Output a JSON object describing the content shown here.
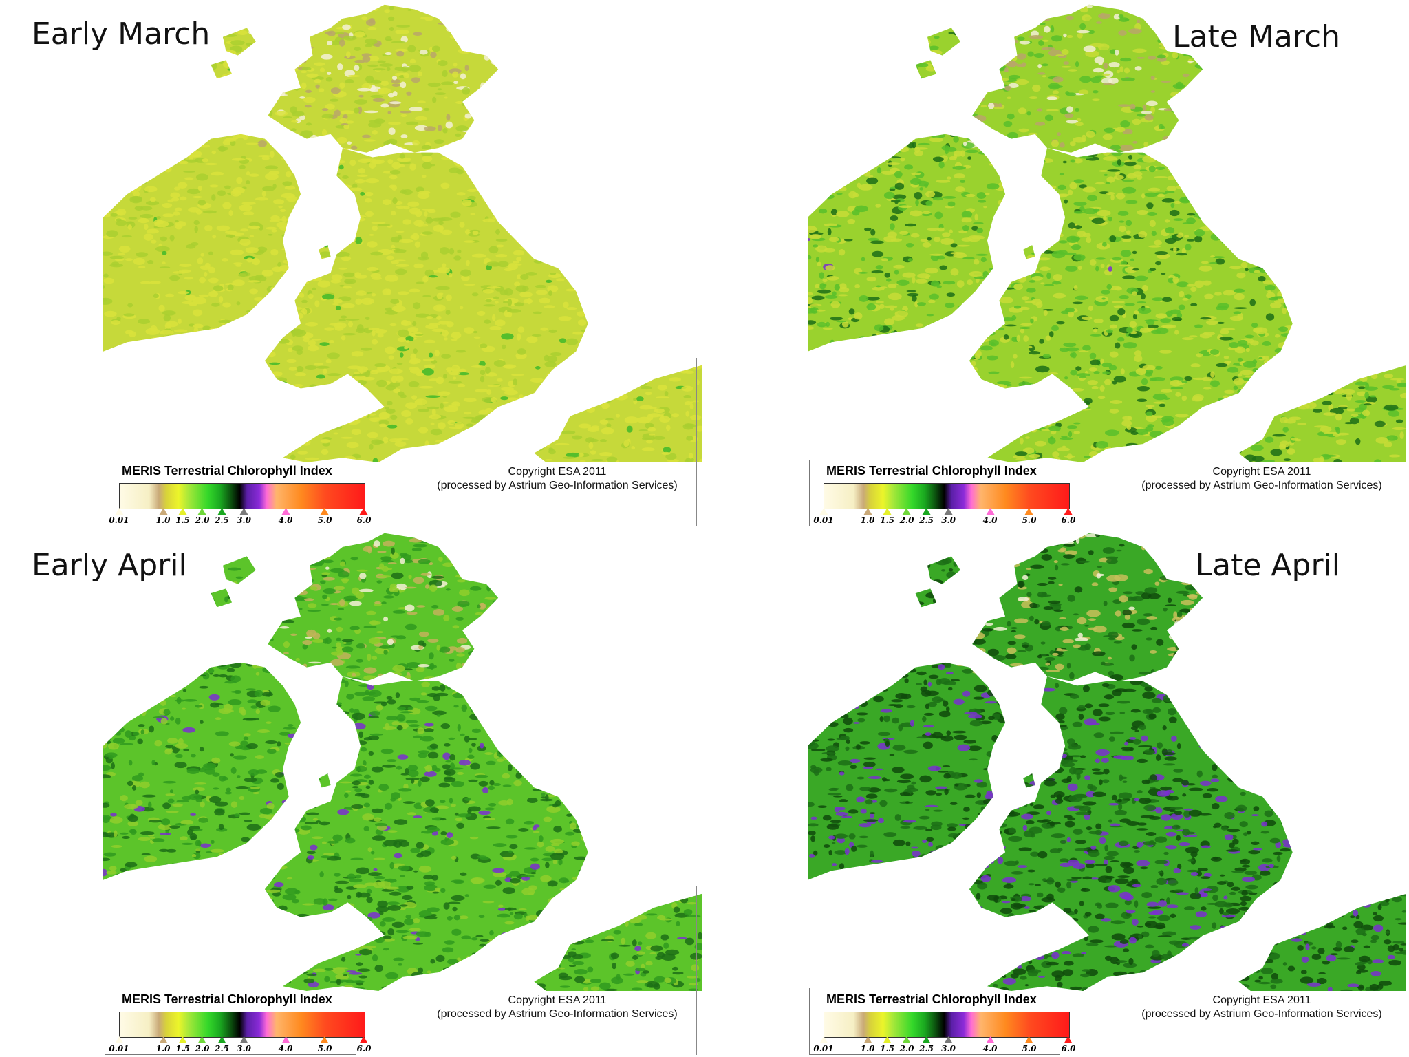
{
  "panels": [
    {
      "title": "Early March",
      "stage": 0
    },
    {
      "title": "Late March",
      "stage": 1
    },
    {
      "title": "Early April",
      "stage": 2
    },
    {
      "title": "Late April",
      "stage": 3
    }
  ],
  "legend": {
    "title": "MERIS Terrestrial Chlorophyll Index",
    "ticks": [
      {
        "label": "0.01",
        "color": "#fffbe6"
      },
      {
        "label": "1.0",
        "color": "#c9a978"
      },
      {
        "label": "1.5",
        "color": "#e5f02a"
      },
      {
        "label": "2.0",
        "color": "#6fd83a"
      },
      {
        "label": "2.5",
        "color": "#1aa820"
      },
      {
        "label": "3.0",
        "color": "#7a7a7a"
      },
      {
        "label": "4.0",
        "color": "#ff6bd6"
      },
      {
        "label": "5.0",
        "color": "#ff8a1f"
      },
      {
        "label": "6.0",
        "color": "#ff1a1a"
      }
    ]
  },
  "copyright": {
    "line1": "Copyright ESA 2011",
    "line2": "(processed by Astrium Geo-Information Services)"
  },
  "colors": {
    "pale": "#f3f0d6",
    "tan": "#b9a66a",
    "yellow": "#d6e034",
    "light_green": "#8fcf2c",
    "green": "#3fb82a",
    "dark_green": "#1c6e16",
    "purple": "#7a2fd0"
  }
}
